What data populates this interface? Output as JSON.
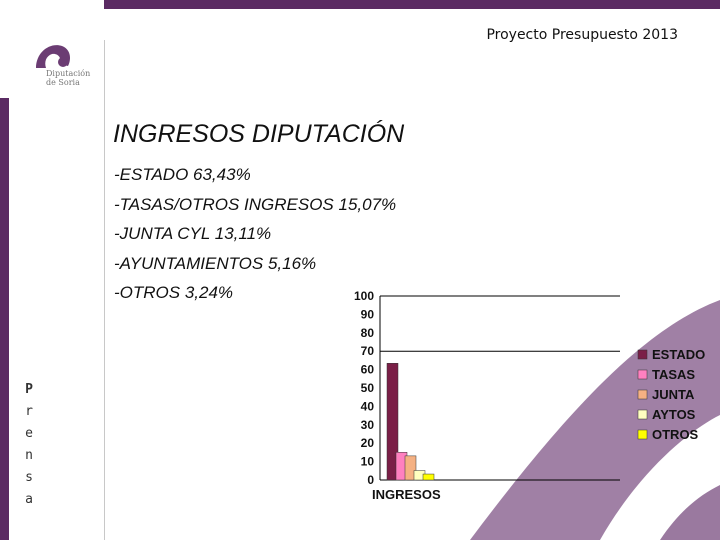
{
  "header": {
    "title": "Proyecto Presupuesto 2013"
  },
  "logo": {
    "line1": "Diputación",
    "line2": "de Soria"
  },
  "sidebar": {
    "letters": [
      "P",
      "r",
      "e",
      "n",
      "s",
      "a"
    ]
  },
  "slide": {
    "title": "INGRESOS DIPUTACIÓN",
    "bullets": [
      "-ESTADO 63,43%",
      "-TASAS/OTROS INGRESOS 15,07%",
      "-JUNTA CYL 13,11%",
      "-AYUNTAMIENTOS 5,16%",
      "-OTROS 3,24%"
    ]
  },
  "colors": {
    "brand_purple": "#5b2b63"
  },
  "chart_data": {
    "type": "bar",
    "categories": [
      "INGRESOS"
    ],
    "series": [
      {
        "name": "ESTADO",
        "values": [
          63.43
        ],
        "color": "#7a1f47"
      },
      {
        "name": "TASAS",
        "values": [
          15.07
        ],
        "color": "#ff80c0"
      },
      {
        "name": "JUNTA",
        "values": [
          13.11
        ],
        "color": "#f5b183"
      },
      {
        "name": "AYTOS",
        "values": [
          5.16
        ],
        "color": "#ffffc0"
      },
      {
        "name": "OTROS",
        "values": [
          3.24
        ],
        "color": "#ffff00"
      }
    ],
    "ylim": [
      0,
      100
    ],
    "yticks": [
      0,
      10,
      20,
      30,
      40,
      50,
      60,
      70,
      80,
      90,
      100
    ],
    "legend_position": "right",
    "grid": false
  }
}
